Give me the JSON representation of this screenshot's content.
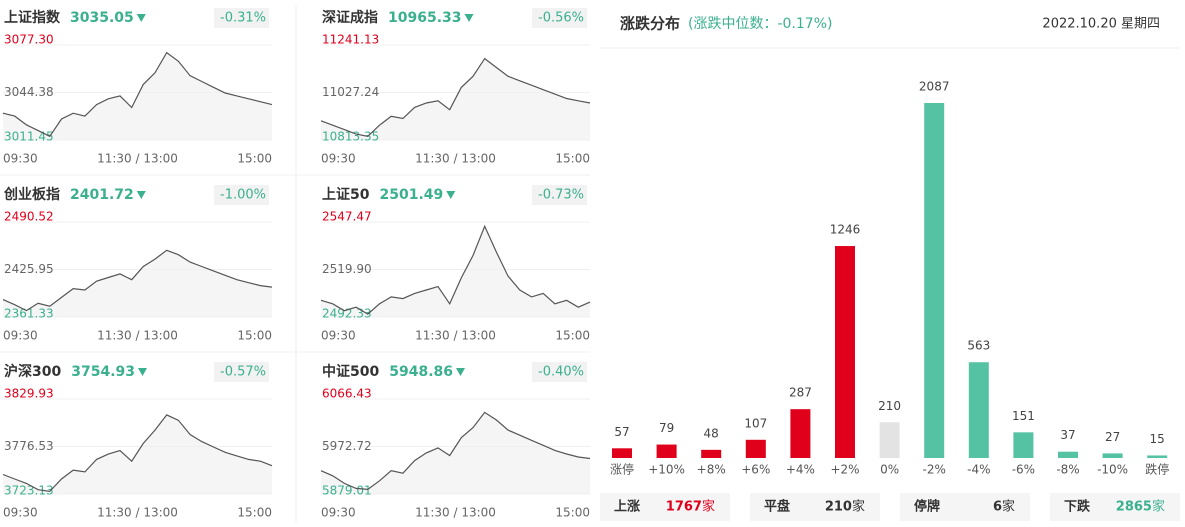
{
  "chart_data": [
    {
      "type": "line",
      "title": "上证指数",
      "price": 3035.05,
      "change": "-0.31%",
      "ylim": [
        3011.45,
        3077.3
      ],
      "yticks": [
        3011.45,
        3044.38,
        {
          "value": 3077.3,
          "label": "3077.30"
        }
      ],
      "xlabels": [
        "09:30",
        "11:30 / 13:00",
        "15:00"
      ],
      "values": [
        3030,
        3028,
        3022,
        3018,
        3014,
        3026,
        3030,
        3028,
        3036,
        3040,
        3042,
        3034,
        3050,
        3058,
        3072,
        3066,
        3056,
        3052,
        3048,
        3044,
        3042,
        3040,
        3038,
        3036
      ]
    },
    {
      "type": "line",
      "title": "深证成指",
      "price": 10965.33,
      "change": "-0.56%",
      "ylim": [
        10813.35,
        11241.13
      ],
      "yticks": [
        10813.35,
        11027.24,
        11241.13
      ],
      "xlabels": [
        "09:30",
        "11:30 / 13:00",
        "15:00"
      ],
      "values": [
        10900,
        10880,
        10860,
        10840,
        10830,
        10880,
        10920,
        10910,
        10960,
        10980,
        10990,
        10950,
        11050,
        11100,
        11180,
        11140,
        11100,
        11080,
        11060,
        11040,
        11020,
        11000,
        10990,
        10980
      ]
    },
    {
      "type": "line",
      "title": "创业板指",
      "price": 2401.72,
      "change": "-1.00%",
      "ylim": [
        2361.33,
        2490.52
      ],
      "yticks": [
        2361.33,
        2425.95,
        2490.52
      ],
      "xlabels": [
        "09:30",
        "11:30 / 13:00",
        "15:00"
      ],
      "values": [
        2385,
        2378,
        2370,
        2380,
        2376,
        2388,
        2400,
        2398,
        2410,
        2415,
        2420,
        2412,
        2430,
        2440,
        2452,
        2446,
        2436,
        2430,
        2424,
        2418,
        2412,
        2408,
        2404,
        2402
      ]
    },
    {
      "type": "line",
      "title": "上证50",
      "price": 2501.49,
      "change": "-0.73%",
      "ylim": [
        2492.33,
        2547.47
      ],
      "yticks": [
        2492.33,
        {
          "value": 2519.9,
          "label": "2519.90"
        },
        2547.47
      ],
      "xlabels": [
        "09:30",
        "11:30 / 13:00",
        "15:00"
      ],
      "values": [
        2502,
        2500,
        2496,
        2498,
        2494,
        2500,
        2504,
        2503,
        2506,
        2508,
        2510,
        2500,
        2515,
        2528,
        2545,
        2530,
        2516,
        2508,
        2504,
        2506,
        2500,
        2502,
        2498,
        2501
      ]
    },
    {
      "type": "line",
      "title": "沪深300",
      "price": 3754.93,
      "change": "-0.57%",
      "ylim": [
        3723.13,
        3829.93
      ],
      "yticks": [
        3723.13,
        3776.53,
        3829.93
      ],
      "xlabels": [
        "09:30",
        "11:30 / 13:00",
        "15:00"
      ],
      "values": [
        3745,
        3740,
        3735,
        3728,
        3726,
        3740,
        3750,
        3748,
        3762,
        3768,
        3772,
        3760,
        3780,
        3795,
        3812,
        3806,
        3790,
        3782,
        3776,
        3770,
        3766,
        3762,
        3760,
        3755
      ]
    },
    {
      "type": "line",
      "title": "中证500",
      "price": 5948.86,
      "change": "-0.40%",
      "ylim": [
        5879.01,
        6066.43
      ],
      "yticks": [
        5879.01,
        5972.72,
        6066.43
      ],
      "xlabels": [
        "09:30",
        "11:30 / 13:00",
        "15:00"
      ],
      "values": [
        5925,
        5915,
        5900,
        5890,
        5888,
        5905,
        5925,
        5920,
        5945,
        5960,
        5970,
        5955,
        5990,
        6010,
        6040,
        6025,
        6005,
        5995,
        5985,
        5975,
        5965,
        5958,
        5952,
        5949
      ]
    },
    {
      "type": "bar",
      "title": "涨跌分布",
      "subtitle": "(涨跌中位数：-0.17%)",
      "date": "2022.10.20 星期四",
      "categories": [
        "涨停",
        "+10%",
        "+8%",
        "+6%",
        "+4%",
        "+2%",
        "0%",
        "-2%",
        "-4%",
        "-6%",
        "-8%",
        "-10%",
        "跌停"
      ],
      "values": [
        57,
        79,
        48,
        107,
        287,
        1246,
        210,
        2087,
        563,
        151,
        37,
        27,
        15
      ],
      "colors": [
        "#e0001b",
        "#e0001b",
        "#e0001b",
        "#e0001b",
        "#e0001b",
        "#e0001b",
        "#e3e3e3",
        "#55c3a3",
        "#55c3a3",
        "#55c3a3",
        "#55c3a3",
        "#55c3a3",
        "#55c3a3"
      ],
      "summary": [
        {
          "label": "上涨",
          "value": 1767,
          "unit": "家",
          "color": "#e0001b"
        },
        {
          "label": "平盘",
          "value": 210,
          "unit": "家",
          "color": "#333333"
        },
        {
          "label": "停牌",
          "value": 6,
          "unit": "家",
          "color": "#333333"
        },
        {
          "label": "下跌",
          "value": 2865,
          "unit": "家",
          "color": "#3bb08f"
        }
      ]
    }
  ]
}
